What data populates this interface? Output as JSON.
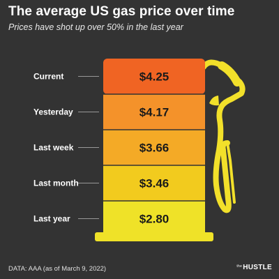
{
  "title": "The average US gas price over time",
  "subtitle": "Prices have shot up over 50% in the last year",
  "source": "DATA: AAA (as of March 9, 2022)",
  "brand": {
    "small": "the",
    "main": "HUSTLE"
  },
  "colors": {
    "background": "#333333",
    "bands": [
      "#f06423",
      "#f4922a",
      "#f4aa26",
      "#f2cb1e",
      "#efe228"
    ],
    "nozzle": "#f2e02a"
  },
  "chart_data": {
    "type": "bar",
    "categories": [
      "Current",
      "Yesterday",
      "Last week",
      "Last month",
      "Last year"
    ],
    "values": [
      4.25,
      4.17,
      3.66,
      3.46,
      2.8
    ],
    "value_labels": [
      "$4.25",
      "$4.17",
      "$3.66",
      "$3.46",
      "$2.80"
    ],
    "unit": "USD per gallon"
  }
}
